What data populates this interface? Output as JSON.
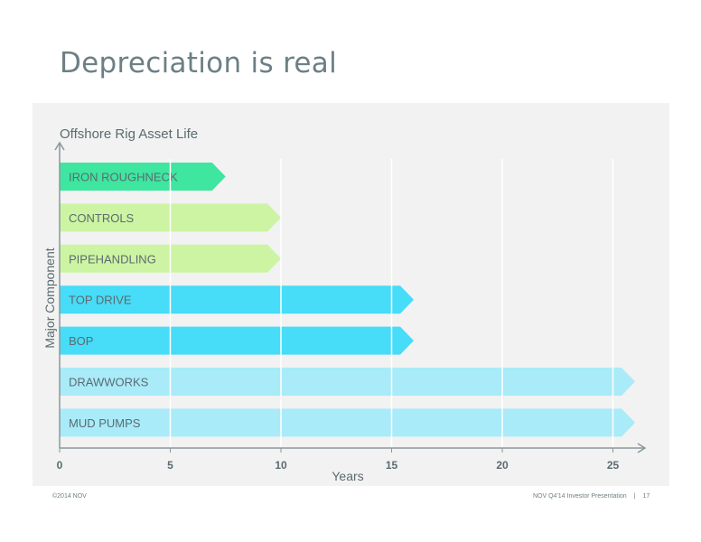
{
  "slide": {
    "title": "Depreciation is real",
    "footer_left": "©2014 NOV",
    "footer_right": "NOV Q4'14 Investor Presentation",
    "footer_separator": "|",
    "page_number": "17"
  },
  "colors": {
    "panel_bg": "#f1f2f1",
    "axis": "#8a979b",
    "label_text": "#5b6b70"
  },
  "chart_data": {
    "type": "bar",
    "orientation": "horizontal",
    "title": "Offshore Rig Asset Life",
    "xlabel": "Years",
    "ylabel": "Major Component",
    "xlim": [
      0,
      26
    ],
    "xticks": [
      0,
      5,
      10,
      15,
      20,
      25
    ],
    "grid": "vertical lines every 5 years",
    "categories": [
      "IRON ROUGHNECK",
      "CONTROLS",
      "PIPEHANDLING",
      "TOP DRIVE",
      "BOP",
      "DRAWWORKS",
      "MUD PUMPS"
    ],
    "values": [
      7.5,
      10,
      10,
      16,
      16,
      26,
      26
    ],
    "bar_colors": [
      "#3ee6a0",
      "#cdf4a3",
      "#cdf4a3",
      "#47dcf7",
      "#47dcf7",
      "#a9ebf8",
      "#a9ebf8"
    ]
  }
}
